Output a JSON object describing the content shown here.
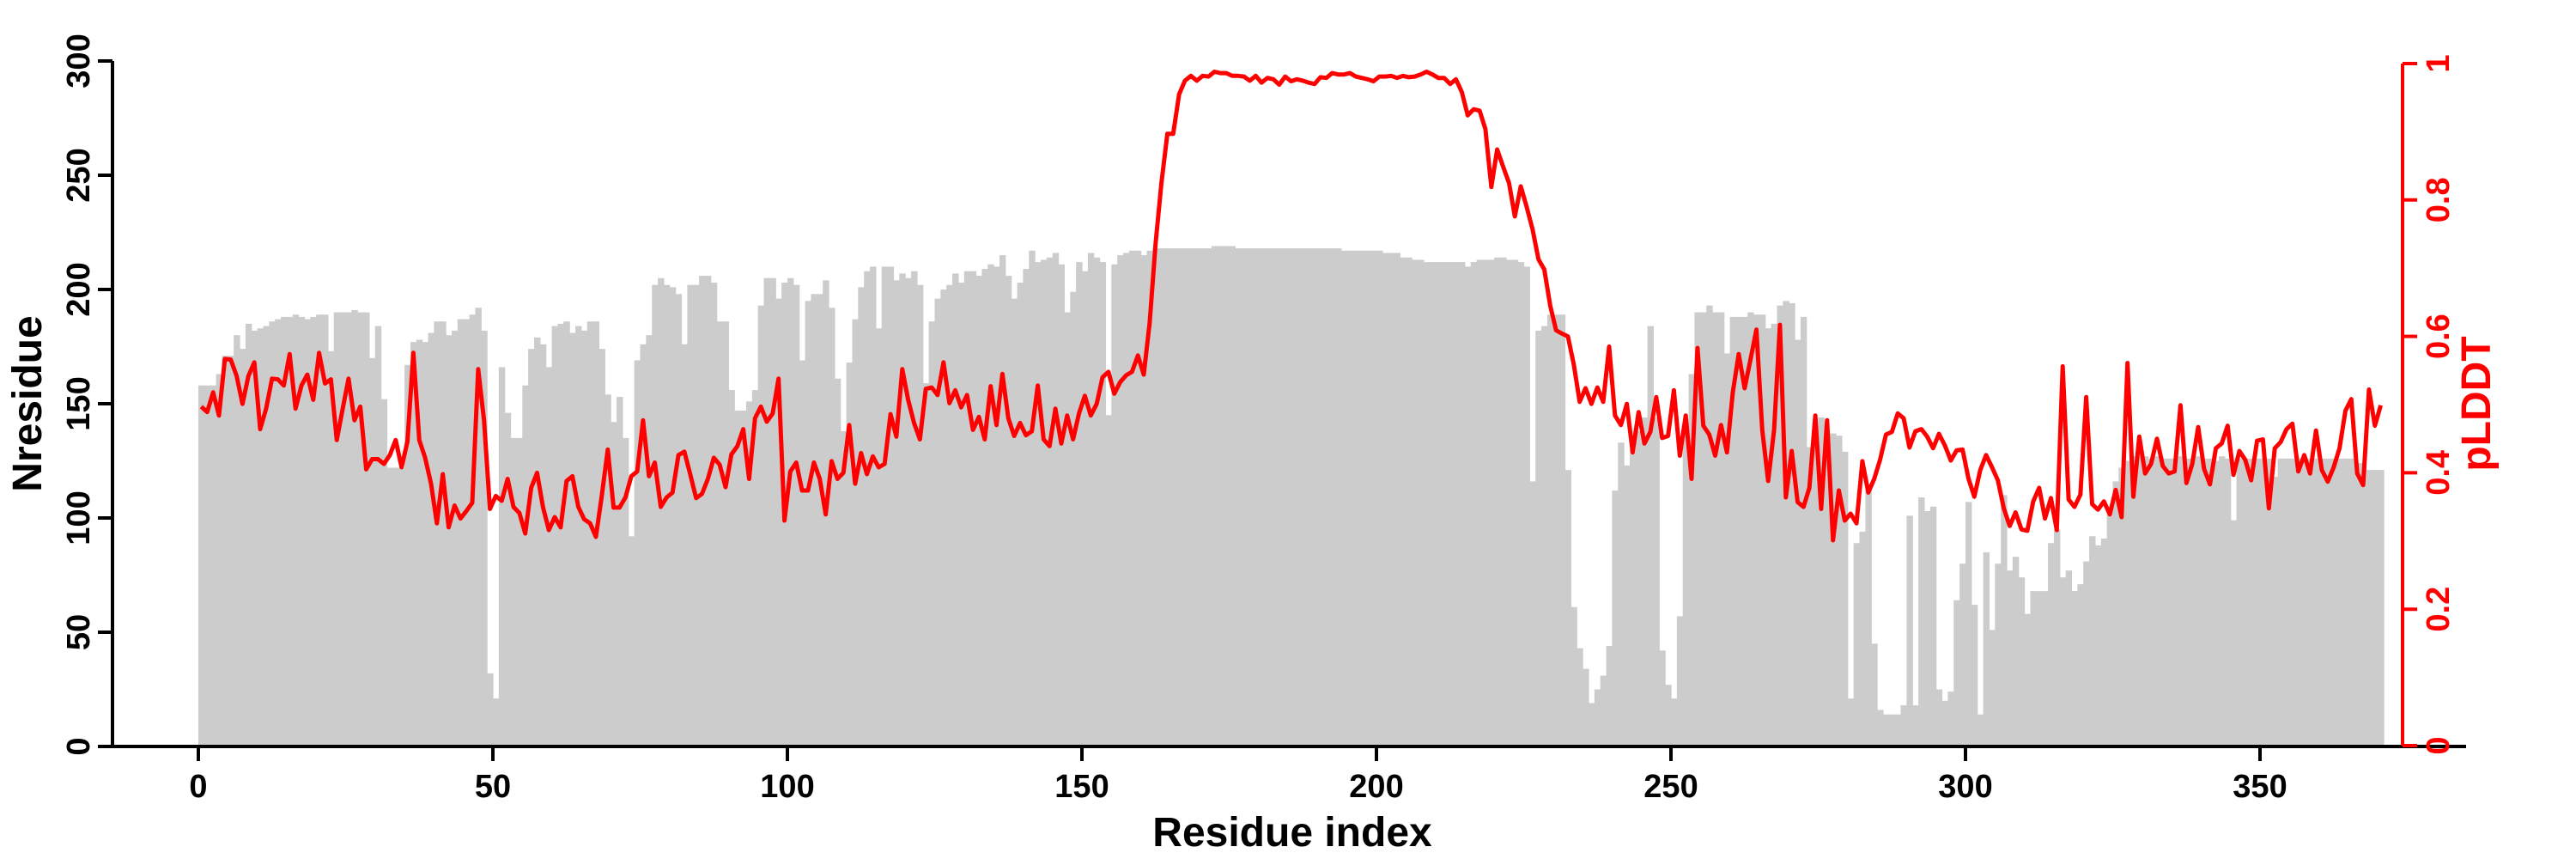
{
  "chart_data": {
    "type": "bar+line",
    "title": "",
    "xlabel": "Residue index",
    "ylabel": "Nresidue",
    "y2label": "pLDDT",
    "xlim": [
      0,
      371
    ],
    "ylim": [
      0,
      300
    ],
    "y2lim": [
      0,
      1
    ],
    "grid": false,
    "legend": "none",
    "x_ticks": [
      "0",
      "50",
      "100",
      "150",
      "200",
      "250",
      "300",
      "350"
    ],
    "y_ticks": [
      "0",
      "50",
      "100",
      "150",
      "200",
      "250",
      "300"
    ],
    "y2_ticks": [
      "0",
      "0.2",
      "0.4",
      "0.6",
      "0.8",
      "1"
    ],
    "colors": {
      "bars": "#cccccc",
      "line": "#ff0000",
      "axis": "#000000",
      "axis2": "#ff0000"
    },
    "series": [
      {
        "name": "Nresidue",
        "type": "bar",
        "axis": "left",
        "values": [
          158,
          158,
          158,
          163,
          171,
          171,
          180,
          174,
          185,
          182,
          183,
          184,
          186,
          187,
          188,
          188,
          189,
          188,
          187,
          188,
          189,
          189,
          173,
          190,
          190,
          190,
          191,
          190,
          190,
          170,
          184,
          152,
          122,
          122,
          122,
          167,
          177,
          178,
          177,
          181,
          186,
          186,
          180,
          182,
          187,
          187,
          189,
          192,
          182,
          32,
          21,
          166,
          146,
          135,
          135,
          158,
          174,
          179,
          176,
          166,
          184,
          185,
          186,
          181,
          184,
          182,
          186,
          186,
          174,
          154,
          142,
          153,
          135,
          92,
          169,
          176,
          180,
          202,
          205,
          202,
          201,
          198,
          176,
          202,
          202,
          206,
          206,
          203,
          186,
          186,
          156,
          147,
          147,
          151,
          156,
          193,
          205,
          205,
          196,
          203,
          205,
          202,
          169,
          195,
          198,
          198,
          204,
          192,
          161,
          138,
          168,
          187,
          201,
          208,
          210,
          183,
          210,
          210,
          204,
          207,
          205,
          208,
          202,
          159,
          186,
          196,
          200,
          202,
          207,
          203,
          208,
          208,
          206,
          209,
          211,
          210,
          215,
          206,
          196,
          203,
          209,
          217,
          212,
          213,
          214,
          216,
          211,
          190,
          199,
          212,
          208,
          216,
          214,
          212,
          145,
          211,
          215,
          216,
          217,
          217,
          215,
          217,
          218,
          218,
          218,
          218,
          218,
          218,
          218,
          218,
          218,
          218,
          219,
          219,
          219,
          219,
          218,
          218,
          218,
          218,
          218,
          218,
          218,
          218,
          218,
          218,
          218,
          218,
          218,
          218,
          218,
          218,
          218,
          218,
          217,
          217,
          217,
          217,
          217,
          217,
          217,
          216,
          216,
          216,
          214,
          214,
          213,
          213,
          212,
          212,
          212,
          212,
          212,
          212,
          212,
          210,
          212,
          213,
          213,
          213,
          214,
          214,
          213,
          213,
          212,
          210,
          116,
          182,
          184,
          189,
          189,
          189,
          121,
          61,
          43,
          34,
          19,
          25,
          31,
          44,
          112,
          133,
          123,
          130,
          138,
          144,
          184,
          144,
          42,
          27,
          21,
          57,
          137,
          163,
          190,
          190,
          193,
          190,
          190,
          172,
          188,
          188,
          188,
          190,
          189,
          189,
          183,
          185,
          193,
          195,
          194,
          178,
          188,
          131,
          131,
          144,
          137,
          137,
          136,
          129,
          21,
          89,
          94,
          112,
          45,
          16,
          14,
          14,
          14,
          18,
          101,
          18,
          109,
          103,
          105,
          25,
          20,
          24,
          64,
          80,
          107,
          62,
          14,
          85,
          51,
          80,
          110,
          77,
          83,
          74,
          58,
          68,
          68,
          68,
          89,
          95,
          74,
          77,
          68,
          71,
          81,
          92,
          88,
          91,
          103,
          116,
          122,
          125,
          127,
          127,
          127,
          126,
          127,
          126,
          126,
          126,
          127,
          126,
          126,
          127,
          126,
          126,
          125,
          127,
          126,
          99,
          126,
          126,
          126,
          126,
          126,
          126,
          118,
          126,
          126,
          126,
          126,
          126,
          126,
          126,
          126,
          126,
          126,
          126,
          126,
          126,
          124,
          124,
          121,
          121,
          121
        ]
      },
      {
        "name": "pLDDT",
        "type": "line",
        "axis": "right",
        "values": [
          0.497,
          0.489,
          0.518,
          0.484,
          0.567,
          0.566,
          0.542,
          0.501,
          0.542,
          0.562,
          0.464,
          0.494,
          0.538,
          0.537,
          0.528,
          0.574,
          0.494,
          0.528,
          0.544,
          0.507,
          0.576,
          0.531,
          0.537,
          0.448,
          0.494,
          0.538,
          0.477,
          0.497,
          0.405,
          0.42,
          0.42,
          0.413,
          0.426,
          0.448,
          0.408,
          0.446,
          0.576,
          0.448,
          0.422,
          0.384,
          0.326,
          0.398,
          0.32,
          0.352,
          0.333,
          0.344,
          0.356,
          0.552,
          0.477,
          0.347,
          0.366,
          0.359,
          0.391,
          0.35,
          0.341,
          0.311,
          0.378,
          0.4,
          0.35,
          0.316,
          0.335,
          0.32,
          0.388,
          0.395,
          0.35,
          0.332,
          0.326,
          0.306,
          0.367,
          0.434,
          0.349,
          0.349,
          0.364,
          0.395,
          0.402,
          0.477,
          0.395,
          0.415,
          0.35,
          0.364,
          0.371,
          0.426,
          0.431,
          0.398,
          0.363,
          0.369,
          0.391,
          0.422,
          0.412,
          0.379,
          0.427,
          0.439,
          0.464,
          0.391,
          0.48,
          0.497,
          0.475,
          0.487,
          0.538,
          0.33,
          0.402,
          0.415,
          0.374,
          0.374,
          0.415,
          0.391,
          0.339,
          0.417,
          0.391,
          0.4,
          0.47,
          0.384,
          0.429,
          0.398,
          0.424,
          0.408,
          0.413,
          0.486,
          0.453,
          0.552,
          0.507,
          0.473,
          0.449,
          0.523,
          0.525,
          0.514,
          0.562,
          0.502,
          0.521,
          0.496,
          0.514,
          0.463,
          0.482,
          0.449,
          0.527,
          0.47,
          0.545,
          0.48,
          0.454,
          0.473,
          0.455,
          0.461,
          0.528,
          0.449,
          0.439,
          0.494,
          0.443,
          0.484,
          0.449,
          0.487,
          0.513,
          0.484,
          0.501,
          0.54,
          0.548,
          0.516,
          0.533,
          0.543,
          0.548,
          0.572,
          0.544,
          0.62,
          0.736,
          0.825,
          0.897,
          0.897,
          0.955,
          0.975,
          0.982,
          0.975,
          0.982,
          0.981,
          0.988,
          0.986,
          0.986,
          0.982,
          0.982,
          0.981,
          0.975,
          0.982,
          0.972,
          0.979,
          0.977,
          0.969,
          0.981,
          0.974,
          0.977,
          0.975,
          0.972,
          0.97,
          0.98,
          0.979,
          0.986,
          0.984,
          0.984,
          0.986,
          0.981,
          0.979,
          0.977,
          0.974,
          0.981,
          0.981,
          0.982,
          0.979,
          0.982,
          0.98,
          0.981,
          0.984,
          0.988,
          0.984,
          0.979,
          0.979,
          0.97,
          0.977,
          0.958,
          0.924,
          0.933,
          0.931,
          0.904,
          0.819,
          0.874,
          0.849,
          0.825,
          0.776,
          0.82,
          0.79,
          0.757,
          0.713,
          0.698,
          0.645,
          0.609,
          0.604,
          0.6,
          0.559,
          0.504,
          0.524,
          0.501,
          0.525,
          0.504,
          0.585,
          0.484,
          0.47,
          0.501,
          0.43,
          0.489,
          0.443,
          0.46,
          0.511,
          0.451,
          0.454,
          0.521,
          0.425,
          0.484,
          0.391,
          0.583,
          0.469,
          0.456,
          0.425,
          0.47,
          0.43,
          0.518,
          0.574,
          0.524,
          0.566,
          0.61,
          0.463,
          0.388,
          0.463,
          0.617,
          0.364,
          0.432,
          0.357,
          0.35,
          0.378,
          0.484,
          0.347,
          0.477,
          0.301,
          0.374,
          0.33,
          0.34,
          0.326,
          0.417,
          0.371,
          0.391,
          0.419,
          0.456,
          0.46,
          0.487,
          0.48,
          0.437,
          0.461,
          0.464,
          0.453,
          0.436,
          0.457,
          0.44,
          0.418,
          0.433,
          0.434,
          0.392,
          0.365,
          0.404,
          0.426,
          0.408,
          0.389,
          0.348,
          0.322,
          0.342,
          0.317,
          0.315,
          0.358,
          0.378,
          0.333,
          0.363,
          0.316,
          0.556,
          0.361,
          0.35,
          0.368,
          0.511,
          0.354,
          0.346,
          0.358,
          0.339,
          0.375,
          0.335,
          0.561,
          0.365,
          0.453,
          0.399,
          0.413,
          0.45,
          0.41,
          0.399,
          0.402,
          0.499,
          0.385,
          0.413,
          0.467,
          0.406,
          0.383,
          0.436,
          0.443,
          0.469,
          0.397,
          0.432,
          0.419,
          0.389,
          0.447,
          0.449,
          0.348,
          0.436,
          0.445,
          0.464,
          0.472,
          0.402,
          0.426,
          0.399,
          0.462,
          0.404,
          0.387,
          0.408,
          0.436,
          0.491,
          0.508,
          0.399,
          0.382,
          0.522,
          0.469,
          0.499
        ]
      }
    ]
  }
}
